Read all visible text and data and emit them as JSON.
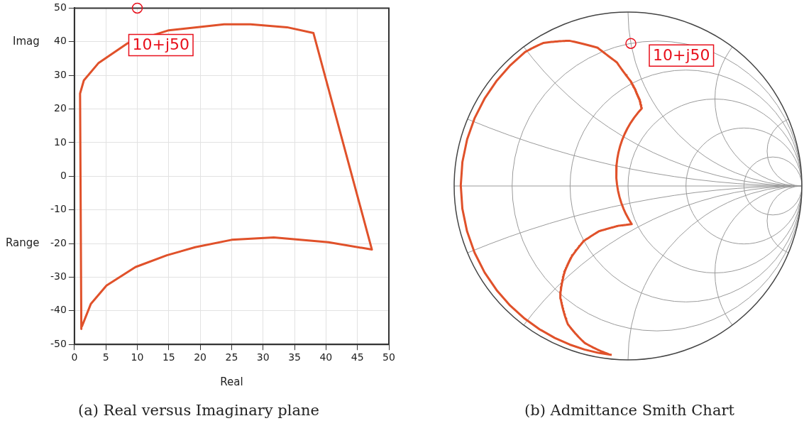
{
  "chart_data": [
    {
      "type": "line",
      "title": "(a) Real versus Imaginary plane",
      "xlabel": "Real",
      "ylabel": "Imag",
      "xlim": [
        0,
        50
      ],
      "xticks": [
        0,
        5,
        10,
        15,
        20,
        25,
        30,
        35,
        40,
        45,
        50
      ],
      "ylim": [
        -50,
        50
      ],
      "yticks": [
        -50,
        -40,
        -30,
        -20,
        -10,
        0,
        10,
        20,
        30,
        40,
        50
      ],
      "grid": true,
      "marker": "none",
      "line_style": "solid",
      "series": [
        {
          "color": "#e0512a",
          "x": [
            1.1,
            0.9,
            1.5,
            3.8,
            8.4,
            15,
            23.8,
            28,
            33.8,
            38,
            47.3,
            40.4,
            31.7,
            25,
            19.2,
            14.7,
            9.7,
            5.1,
            2.6,
            1.2
          ],
          "values": [
            -45.4,
            24.6,
            28.5,
            33.6,
            39.5,
            43.4,
            45.2,
            45.2,
            44.3,
            42.6,
            -21.8,
            -19.6,
            -18.2,
            -18.9,
            -21.1,
            -23.5,
            -27,
            -32.5,
            -38,
            -44.6
          ]
        }
      ],
      "annotations": [
        {
          "text": "10+j50",
          "x": 10,
          "y": 50
        },
        "Range"
      ]
    },
    {
      "type": "other",
      "title": "(b) Admittance Smith Chart",
      "annotations": [
        "10+j50"
      ]
    }
  ]
}
